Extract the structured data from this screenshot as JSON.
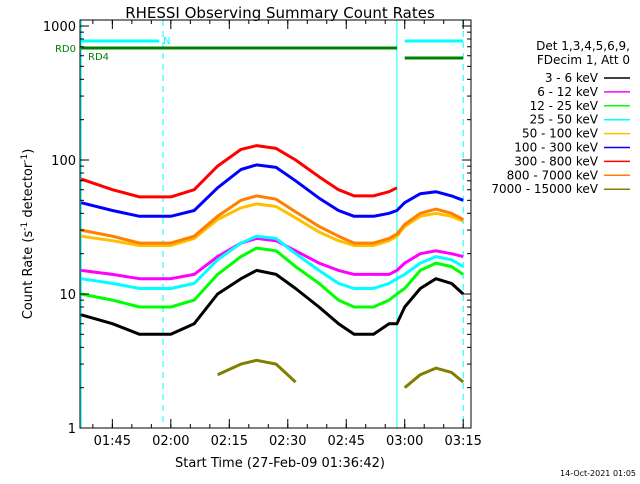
{
  "chart_data": {
    "type": "line",
    "title": "RHESSI Observing Summary Count Rates",
    "xlabel": "Start Time (27-Feb-09 01:36:42)",
    "ylabel_main": "Count Rate (s",
    "ylabel_sup": "-1",
    "ylabel_tail": " detector",
    "ylabel_end": ")",
    "y_scale": "log",
    "ylim": [
      1,
      1000
    ],
    "xlim": [
      "01:36:42",
      "03:17:00"
    ],
    "x_ticks": [
      "01:45",
      "02:00",
      "02:15",
      "02:30",
      "02:45",
      "03:00",
      "03:15"
    ],
    "y_ticks": [
      "1",
      "10",
      "100",
      "1000"
    ],
    "grid": false,
    "legend_header": [
      "Det 1,3,4,5,6,9,",
      "FDecim 1, Att 0"
    ],
    "legend_placement": "right",
    "footer_date": "14-Oct-2021 01:05",
    "flags": [
      {
        "label": "N",
        "color": "#00ffff",
        "segments": [
          [
            "01:37",
            "01:57"
          ],
          [
            "03:00",
            "03:15"
          ]
        ]
      },
      {
        "label": "RD0",
        "color": "#008000",
        "segments": [
          [
            "01:37",
            "02:58"
          ]
        ]
      },
      {
        "label": "RD4",
        "color": "#008000",
        "segments": [
          [
            "03:00",
            "03:15"
          ]
        ]
      }
    ],
    "markers": {
      "solid": [
        "01:37",
        "02:58"
      ],
      "dashed": [
        "01:58",
        "03:15"
      ],
      "color": "#00ffff"
    },
    "x": [
      "01:37",
      "01:45",
      "01:52",
      "02:00",
      "02:06",
      "02:12",
      "02:18",
      "02:22",
      "02:27",
      "02:32",
      "02:38",
      "02:43",
      "02:47",
      "02:52",
      "02:56",
      "02:58",
      "03:00",
      "03:04",
      "03:08",
      "03:12",
      "03:15"
    ],
    "series": [
      {
        "name": "3 - 6 keV",
        "color": "#000000",
        "values": [
          7,
          6,
          5,
          5,
          6,
          10,
          13,
          15,
          14,
          11,
          8,
          6,
          5,
          5,
          6,
          6,
          8,
          11,
          13,
          12,
          10
        ]
      },
      {
        "name": "6 - 12 keV",
        "color": "#ff00ff",
        "values": [
          15,
          14,
          13,
          13,
          14,
          19,
          24,
          26,
          25,
          21,
          17,
          15,
          14,
          14,
          14,
          15,
          17,
          20,
          21,
          20,
          19
        ]
      },
      {
        "name": "12 - 25 keV",
        "color": "#00ff00",
        "values": [
          10,
          9,
          8,
          8,
          9,
          14,
          19,
          22,
          21,
          16,
          12,
          9,
          8,
          8,
          9,
          10,
          11,
          15,
          17,
          16,
          14
        ]
      },
      {
        "name": "25 - 50 keV",
        "color": "#00ffff",
        "values": [
          13,
          12,
          11,
          11,
          12,
          18,
          24,
          27,
          26,
          20,
          15,
          12,
          11,
          11,
          12,
          13,
          14,
          17,
          19,
          18,
          16
        ]
      },
      {
        "name": "50 - 100 keV",
        "color": "#ffbf00",
        "values": [
          27,
          25,
          23,
          23,
          26,
          36,
          44,
          47,
          45,
          37,
          29,
          25,
          23,
          23,
          25,
          27,
          32,
          38,
          40,
          38,
          35
        ]
      },
      {
        "name": "100 - 300 keV",
        "color": "#0000ff",
        "values": [
          48,
          42,
          38,
          38,
          42,
          62,
          85,
          92,
          88,
          70,
          52,
          42,
          38,
          38,
          40,
          42,
          48,
          56,
          58,
          54,
          50
        ]
      },
      {
        "name": "300 - 800 keV",
        "color": "#ff0000",
        "values": [
          72,
          60,
          53,
          53,
          60,
          90,
          120,
          128,
          122,
          100,
          75,
          60,
          54,
          54,
          58,
          62,
          null,
          null,
          null,
          null,
          null
        ]
      },
      {
        "name": "800 - 7000 keV",
        "color": "#ff8000",
        "values": [
          30,
          27,
          24,
          24,
          27,
          38,
          50,
          54,
          51,
          41,
          32,
          27,
          24,
          24,
          26,
          28,
          33,
          40,
          43,
          40,
          36
        ]
      },
      {
        "name": "7000 - 15000 keV",
        "color": "#808000",
        "values": [
          null,
          null,
          null,
          null,
          null,
          2.5,
          3.0,
          3.2,
          3.0,
          2.2,
          null,
          null,
          null,
          null,
          null,
          null,
          2.0,
          2.5,
          2.8,
          2.6,
          2.2
        ]
      }
    ]
  }
}
